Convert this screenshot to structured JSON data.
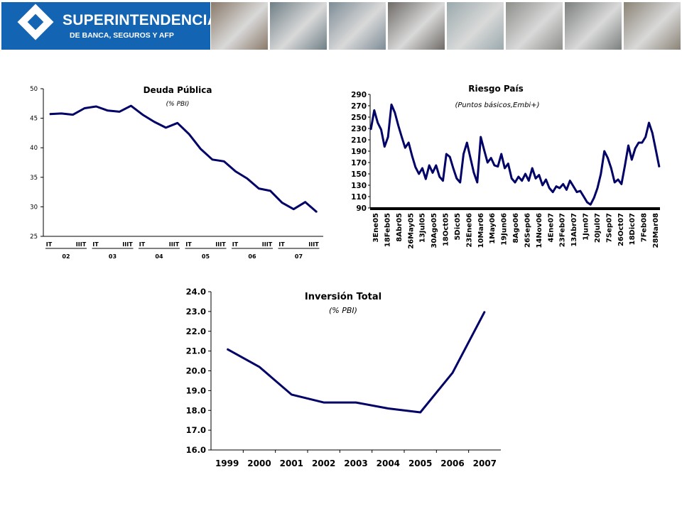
{
  "header": {
    "logo_title": "SUPERINTENDENCIA",
    "logo_subtitle": "DE BANCA, SEGUROS Y AFP",
    "photos": [
      {
        "icon": "credit-card-photo",
        "color": "#8a7a6a"
      },
      {
        "icon": "building-photo",
        "color": "#6f7f86"
      },
      {
        "icon": "keyboard-photo",
        "color": "#7d8c96"
      },
      {
        "icon": "laptop-photo",
        "color": "#6e6a66"
      },
      {
        "icon": "banknotes-photo",
        "color": "#9aa9ad"
      },
      {
        "icon": "card-terminal-photo",
        "color": "#8d8f8a"
      },
      {
        "icon": "businessmen-photo",
        "color": "#7b7f7e"
      },
      {
        "icon": "handshake-photo",
        "color": "#8a8376"
      }
    ]
  },
  "colors": {
    "line": "#000066",
    "axis": "#000000"
  },
  "chart_data": [
    {
      "type": "line",
      "title": "Deuda Pública",
      "subtitle": "(% PBI)",
      "ylim": [
        25,
        50
      ],
      "yticks": [
        "25",
        "30",
        "35",
        "40",
        "45",
        "50"
      ],
      "quarter_labels": [
        "IT",
        "IIIT",
        "IT",
        "IIIT",
        "IT",
        "IIIT",
        "IT",
        "IIIT",
        "IT",
        "IIIT",
        "IT",
        "IIIT"
      ],
      "year_labels": [
        "02",
        "03",
        "04",
        "05",
        "06",
        "07"
      ],
      "values": [
        45.7,
        45.8,
        45.6,
        46.7,
        47.0,
        46.3,
        46.1,
        47.1,
        45.6,
        44.4,
        43.4,
        44.2,
        42.3,
        39.8,
        38.0,
        37.7,
        36.0,
        34.8,
        33.1,
        32.7,
        30.7,
        29.6,
        30.8,
        29.1
      ]
    },
    {
      "type": "line",
      "title": "Riesgo País",
      "subtitle": "(Puntos básicos,Embi+)",
      "ylim": [
        90,
        290
      ],
      "yticks": [
        "90",
        "110",
        "130",
        "150",
        "170",
        "190",
        "210",
        "230",
        "250",
        "270",
        "290"
      ],
      "xticks": [
        "3Ene05",
        "18Feb05",
        "8Abr05",
        "26May05",
        "13Jul05",
        "30Ago05",
        "18Oct05",
        "5Dic05",
        "23Ene06",
        "10Mar06",
        "1May06",
        "19Jun06",
        "8Ago06",
        "26Sep06",
        "14Nov06",
        "4Ene07",
        "23Feb07",
        "13Abr07",
        "1Jun07",
        "20Jul07",
        "7Sep07",
        "26Oct07",
        "18Dic07",
        "7Feb08",
        "28Mar08"
      ],
      "values": [
        228,
        262,
        240,
        228,
        198,
        215,
        272,
        258,
        235,
        215,
        196,
        205,
        182,
        162,
        150,
        160,
        141,
        165,
        152,
        165,
        145,
        138,
        185,
        180,
        160,
        142,
        135,
        185,
        205,
        178,
        152,
        135,
        215,
        192,
        170,
        178,
        165,
        163,
        185,
        160,
        168,
        142,
        135,
        145,
        138,
        150,
        138,
        160,
        142,
        148,
        130,
        140,
        125,
        118,
        128,
        125,
        132,
        122,
        138,
        128,
        118,
        120,
        110,
        100,
        96,
        108,
        125,
        150,
        190,
        178,
        160,
        135,
        140,
        132,
        165,
        200,
        175,
        195,
        205,
        205,
        215,
        240,
        222,
        192,
        162
      ]
    },
    {
      "type": "line",
      "title": "Inversión Total",
      "subtitle": "(% PBI)",
      "ylim": [
        16.0,
        24.0
      ],
      "yticks": [
        "16.0",
        "17.0",
        "18.0",
        "19.0",
        "20.0",
        "21.0",
        "22.0",
        "23.0",
        "24.0"
      ],
      "categories": [
        "1999",
        "2000",
        "2001",
        "2002",
        "2003",
        "2004",
        "2005",
        "2006",
        "2007"
      ],
      "values": [
        21.1,
        20.2,
        18.8,
        18.4,
        18.4,
        18.1,
        17.9,
        19.9,
        23.0
      ]
    }
  ]
}
